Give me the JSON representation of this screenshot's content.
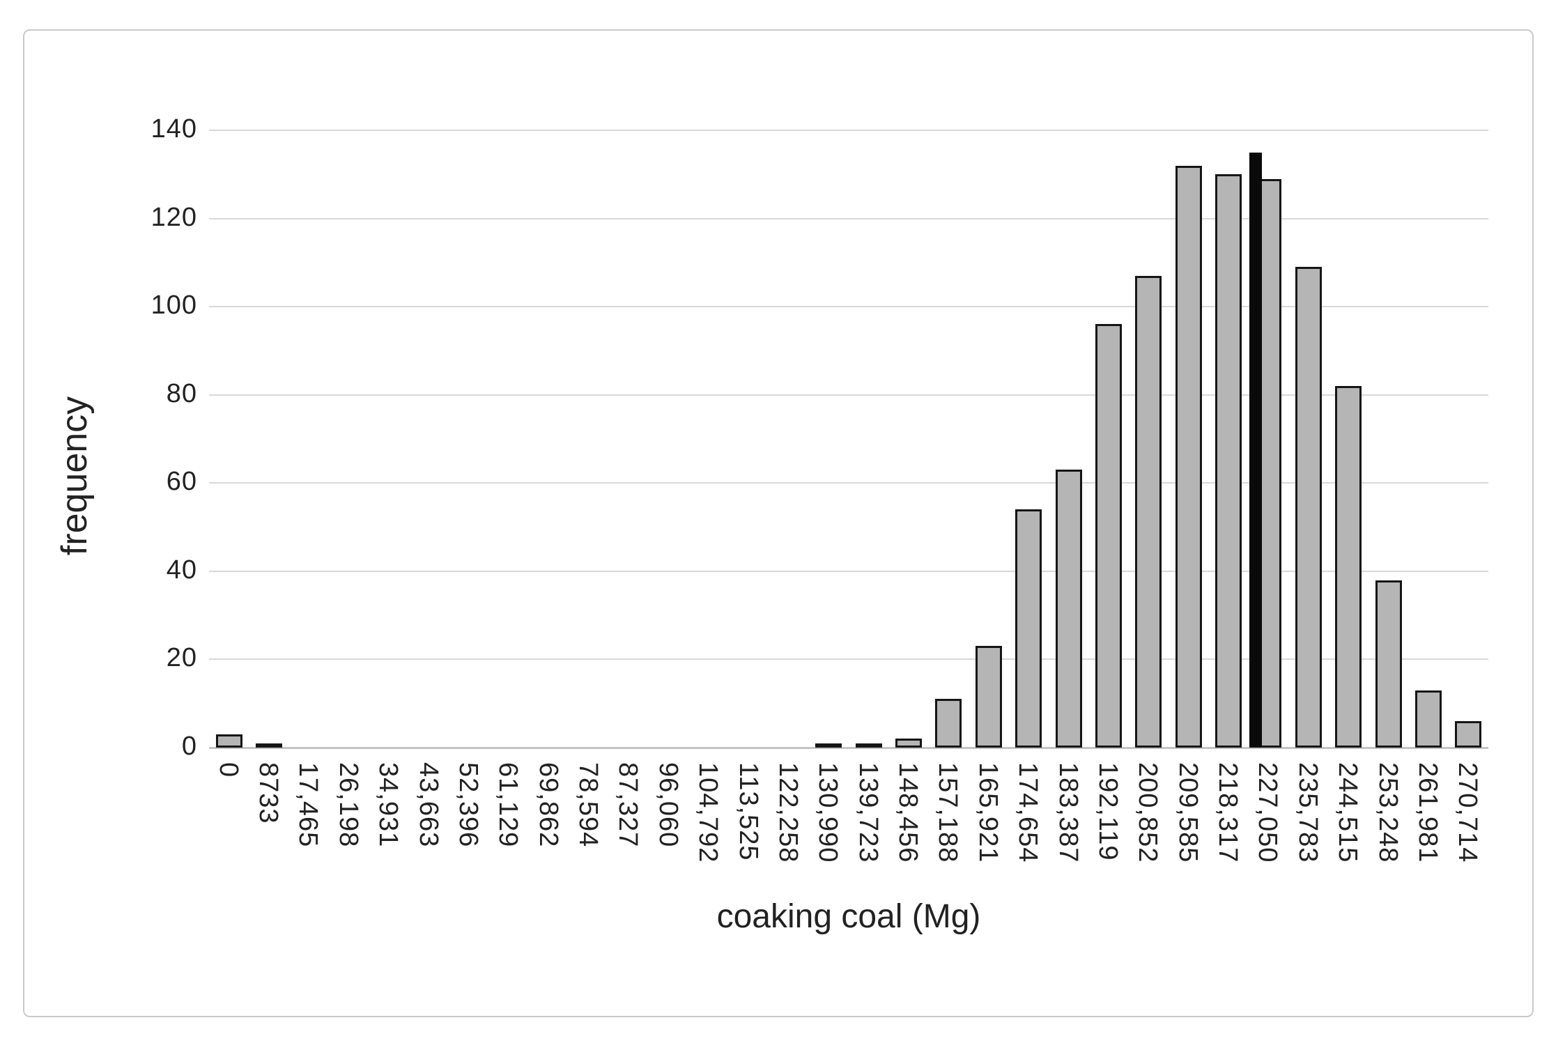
{
  "figure": {
    "background": "#ffffff",
    "frame_color": "#c9c9c9",
    "text_color": "#222222"
  },
  "chart_data": {
    "type": "bar",
    "title": "",
    "xlabel": "coaking coal (Mg)",
    "ylabel": "frequency",
    "categories": [
      "0",
      "8733",
      "17,465",
      "26,198",
      "34,931",
      "43,663",
      "52,396",
      "61,129",
      "69,862",
      "78,594",
      "87,327",
      "96,060",
      "104,792",
      "113,525",
      "122,258",
      "130,990",
      "139,723",
      "148,456",
      "157,188",
      "165,921",
      "174,654",
      "183,387",
      "192,119",
      "200,852",
      "209,585",
      "218,317",
      "227,050",
      "235,783",
      "244,515",
      "253,248",
      "261,981",
      "270,714"
    ],
    "values": [
      3,
      1,
      0,
      0,
      0,
      0,
      0,
      0,
      0,
      0,
      0,
      0,
      0,
      0,
      0,
      1,
      1,
      2,
      11,
      23,
      54,
      63,
      96,
      107,
      132,
      130,
      129,
      109,
      82,
      38,
      13,
      6
    ],
    "marker_bar": {
      "value": 135,
      "between_categories": [
        "218,317",
        "227,050"
      ],
      "color": "#0a0a0a"
    },
    "ylim": [
      0,
      140
    ],
    "yticks": [
      0,
      20,
      40,
      60,
      80,
      100,
      120,
      140
    ],
    "grid": true,
    "legend": "none",
    "bar_fill": "#b5b5b5",
    "bar_border": "#161616",
    "gridline_color": "#d8d8d8",
    "axisline_color": "#c4c4c4",
    "x_tick_rotation_deg": 90,
    "y_tick_rotation_deg": 0
  }
}
